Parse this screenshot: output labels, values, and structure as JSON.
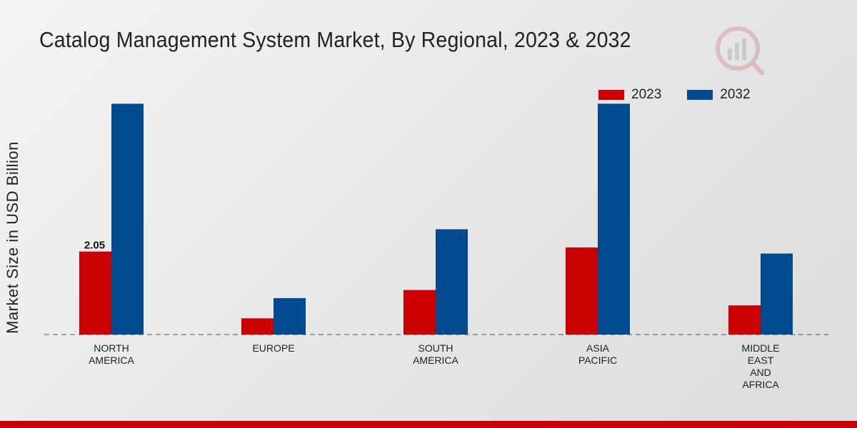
{
  "title": "Catalog Management System Market, By Regional, 2023 & 2032",
  "watermark_icon": "chart-logo-icon",
  "colors": {
    "series_2023": "#cc0000",
    "series_2032": "#004a8f",
    "baseline": "#555555",
    "footer": "#cc0000"
  },
  "chart_data": {
    "type": "bar",
    "title": "Catalog Management System Market, By Regional, 2023 & 2032",
    "xlabel": "",
    "ylabel": "Market Size in USD Billion",
    "ylim": [
      0,
      6.5
    ],
    "categories": [
      [
        "NORTH",
        "AMERICA"
      ],
      [
        "EUROPE"
      ],
      [
        "SOUTH",
        "AMERICA"
      ],
      [
        "ASIA",
        "PACIFIC"
      ],
      [
        "MIDDLE",
        "EAST",
        "AND",
        "AFRICA"
      ]
    ],
    "series": [
      {
        "name": "2023",
        "values": [
          2.05,
          0.4,
          1.1,
          2.15,
          0.72
        ]
      },
      {
        "name": "2032",
        "values": [
          5.7,
          0.9,
          2.6,
          5.7,
          2.0
        ]
      }
    ],
    "data_labels": [
      {
        "series": 0,
        "index": 0,
        "text": "2.05"
      }
    ],
    "legend": {
      "position": "top-right",
      "entries": [
        "2023",
        "2032"
      ]
    },
    "grid": false
  }
}
